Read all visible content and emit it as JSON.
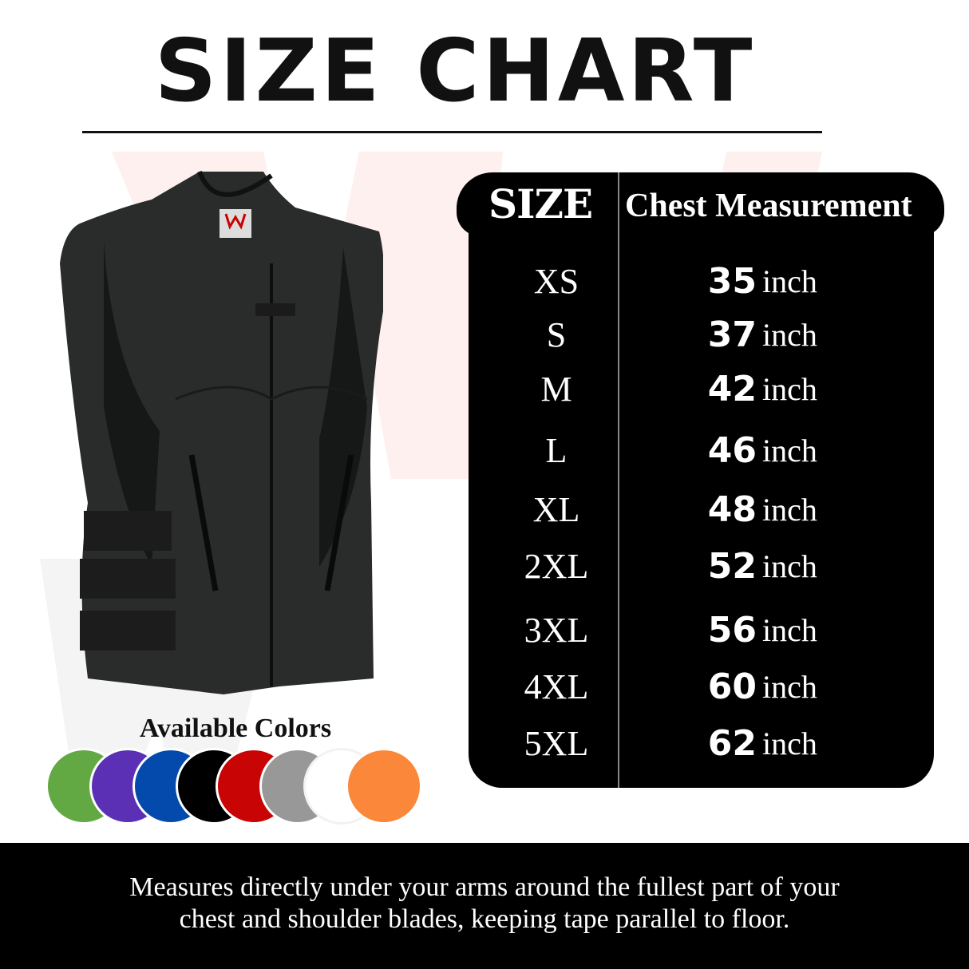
{
  "title": "SIZE CHART",
  "table": {
    "header_size": "SIZE",
    "header_chest": "Chest Measurement",
    "rows": [
      {
        "size": "XS",
        "value": "35",
        "unit": "inch"
      },
      {
        "size": "S",
        "value": "37",
        "unit": "inch"
      },
      {
        "size": "M",
        "value": "42",
        "unit": "inch"
      },
      {
        "size": "L",
        "value": "46",
        "unit": "inch"
      },
      {
        "size": "XL",
        "value": "48",
        "unit": "inch"
      },
      {
        "size": "2XL",
        "value": "52",
        "unit": "inch"
      },
      {
        "size": "3XL",
        "value": "56",
        "unit": "inch"
      },
      {
        "size": "4XL",
        "value": "60",
        "unit": "inch"
      },
      {
        "size": "5XL",
        "value": "62",
        "unit": "inch"
      }
    ]
  },
  "colors": {
    "label": "Available Colors",
    "swatches": [
      {
        "name": "green",
        "hex": "#62a943"
      },
      {
        "name": "purple",
        "hex": "#5c30b4"
      },
      {
        "name": "blue",
        "hex": "#034aac"
      },
      {
        "name": "black",
        "hex": "#000000"
      },
      {
        "name": "red",
        "hex": "#c80404"
      },
      {
        "name": "gray",
        "hex": "#989898"
      },
      {
        "name": "white",
        "hex": "#ffffff"
      },
      {
        "name": "orange",
        "hex": "#fb873a"
      }
    ]
  },
  "product": {
    "logo_text": "WOLF CLAW",
    "image": "black leather vest"
  },
  "footer": {
    "line1": "Measures directly under your arms around the fullest part of your",
    "line2": "chest and shoulder blades, keeping tape parallel to floor."
  }
}
